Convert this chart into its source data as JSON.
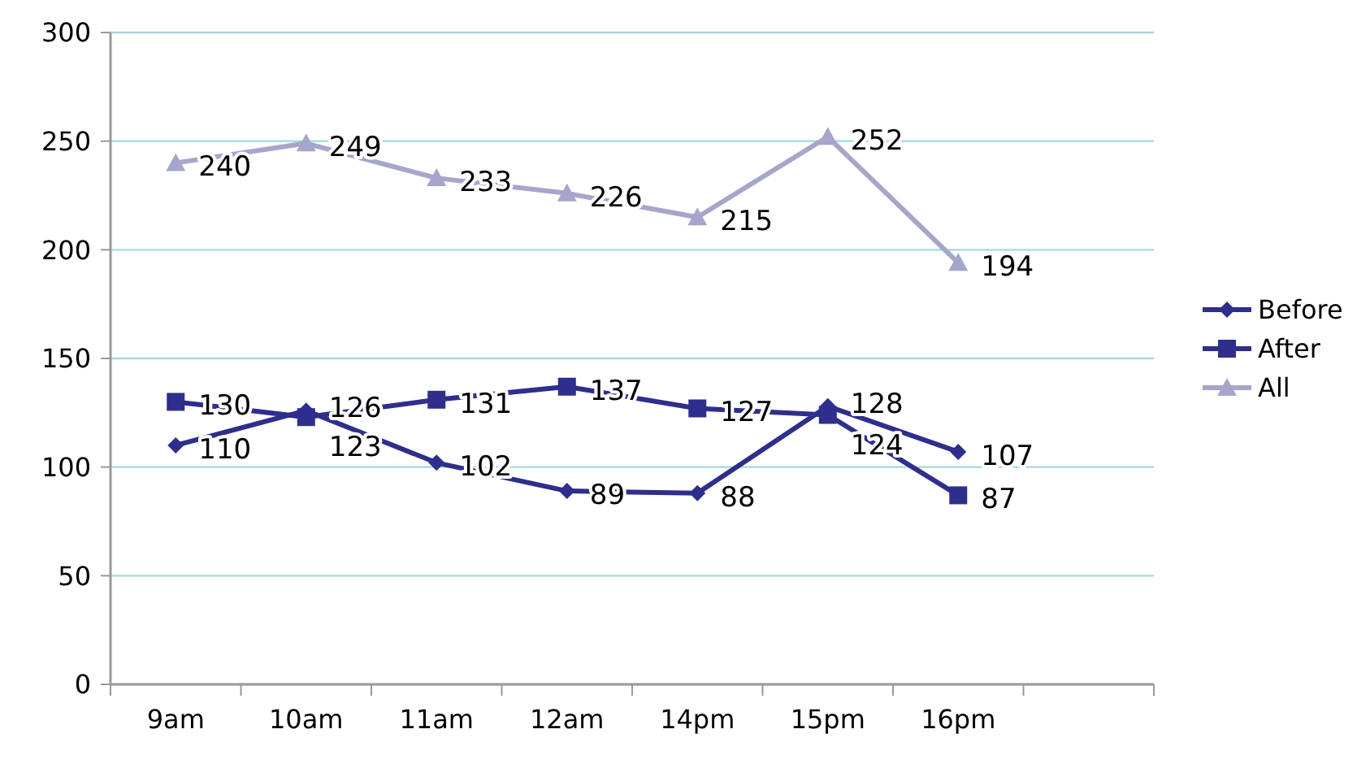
{
  "chart_data": {
    "type": "line",
    "categories": [
      "9am",
      "10am",
      "11am",
      "12am",
      "14pm",
      "15pm",
      "16pm",
      null
    ],
    "series": [
      {
        "name": "Before",
        "color": "#2e2e8c",
        "marker": "diamond",
        "values": [
          110,
          126,
          102,
          89,
          88,
          128,
          107,
          null
        ]
      },
      {
        "name": "After",
        "color": "#2e2e8c",
        "marker": "square",
        "values": [
          130,
          123,
          131,
          137,
          127,
          124,
          87,
          null
        ]
      },
      {
        "name": "All",
        "color": "#a6a6cc",
        "marker": "triangle",
        "values": [
          240,
          249,
          233,
          226,
          215,
          252,
          194,
          null
        ]
      }
    ],
    "ylim": [
      0,
      300
    ],
    "yticks": [
      0,
      50,
      100,
      150,
      200,
      250,
      300
    ],
    "grid": "y",
    "legend": "right",
    "data_labels": true
  }
}
